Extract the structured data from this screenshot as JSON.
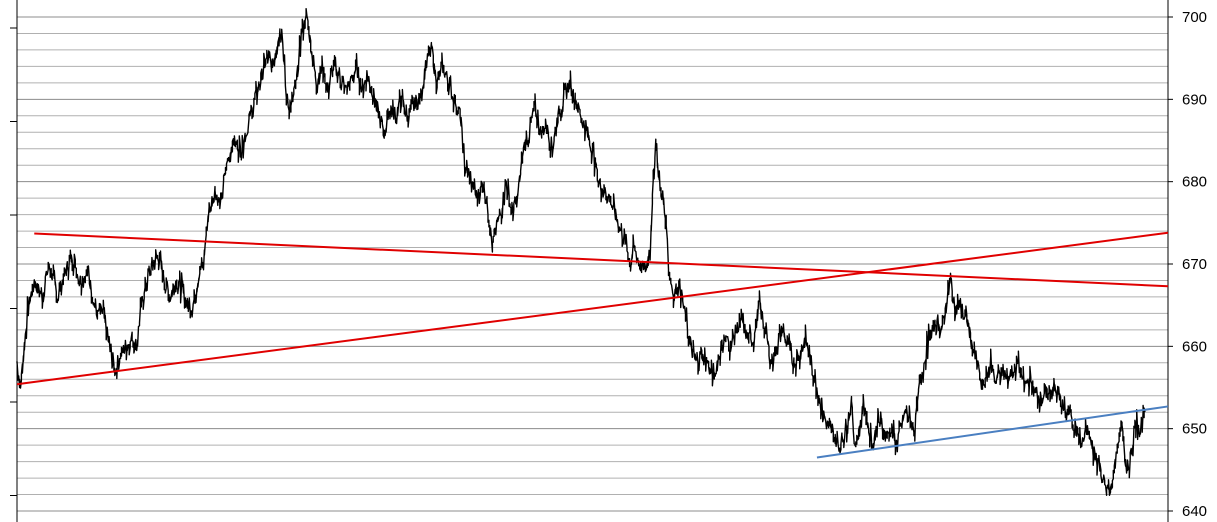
{
  "chart_data": {
    "type": "line",
    "title": "",
    "xlabel": "",
    "ylabel": "",
    "y_axis_position": "right",
    "ylim": [
      639,
      701
    ],
    "y_ticks": [
      640,
      650,
      660,
      670,
      680,
      690,
      700
    ],
    "minor_grid_step": 2,
    "grid": true,
    "legend": "none",
    "x_index_range": [
      0,
      1000
    ],
    "series": [
      {
        "color": "#000000",
        "points": [
          [
            0,
            658
          ],
          [
            3,
            655
          ],
          [
            9,
            664
          ],
          [
            15,
            668
          ],
          [
            22,
            666
          ],
          [
            28,
            670
          ],
          [
            35,
            666
          ],
          [
            42,
            669
          ],
          [
            48,
            671
          ],
          [
            55,
            668
          ],
          [
            62,
            669
          ],
          [
            69,
            664
          ],
          [
            75,
            664
          ],
          [
            80,
            660
          ],
          [
            85,
            657
          ],
          [
            90,
            659
          ],
          [
            95,
            660
          ],
          [
            100,
            661
          ],
          [
            104,
            660
          ],
          [
            108,
            665
          ],
          [
            113,
            668
          ],
          [
            118,
            670
          ],
          [
            123,
            671
          ],
          [
            128,
            668
          ],
          [
            133,
            666
          ],
          [
            138,
            668
          ],
          [
            143,
            667
          ],
          [
            148,
            665
          ],
          [
            153,
            665
          ],
          [
            158,
            669
          ],
          [
            162,
            670
          ],
          [
            166,
            676
          ],
          [
            172,
            679
          ],
          [
            177,
            677
          ],
          [
            182,
            682
          ],
          [
            188,
            685
          ],
          [
            194,
            684
          ],
          [
            199,
            686
          ],
          [
            205,
            689
          ],
          [
            211,
            692
          ],
          [
            217,
            695
          ],
          [
            222,
            694
          ],
          [
            226,
            697
          ],
          [
            230,
            699
          ],
          [
            234,
            690
          ],
          [
            238,
            689
          ],
          [
            243,
            692
          ],
          [
            247,
            698
          ],
          [
            252,
            700
          ],
          [
            256,
            696
          ],
          [
            260,
            692
          ],
          [
            265,
            694
          ],
          [
            270,
            691
          ],
          [
            275,
            694
          ],
          [
            280,
            693
          ],
          [
            285,
            691
          ],
          [
            290,
            692
          ],
          [
            295,
            694
          ],
          [
            300,
            691
          ],
          [
            304,
            693
          ],
          [
            309,
            691
          ],
          [
            314,
            688
          ],
          [
            319,
            686
          ],
          [
            324,
            689
          ],
          [
            329,
            688
          ],
          [
            334,
            690
          ],
          [
            339,
            688
          ],
          [
            344,
            689
          ],
          [
            350,
            690
          ],
          [
            355,
            694
          ],
          [
            360,
            696
          ],
          [
            365,
            692
          ],
          [
            370,
            694
          ],
          [
            375,
            692
          ],
          [
            380,
            690
          ],
          [
            385,
            688
          ],
          [
            389,
            682
          ],
          [
            394,
            680
          ],
          [
            400,
            678
          ],
          [
            405,
            680
          ],
          [
            410,
            676
          ],
          [
            413,
            672
          ],
          [
            416,
            674
          ],
          [
            420,
            676
          ],
          [
            425,
            680
          ],
          [
            430,
            676
          ],
          [
            435,
            678
          ],
          [
            440,
            684
          ],
          [
            445,
            686
          ],
          [
            450,
            689
          ],
          [
            455,
            686
          ],
          [
            460,
            687
          ],
          [
            465,
            684
          ],
          [
            470,
            688
          ],
          [
            475,
            690
          ],
          [
            480,
            692
          ],
          [
            485,
            690
          ],
          [
            490,
            688
          ],
          [
            495,
            686
          ],
          [
            500,
            684
          ],
          [
            505,
            680
          ],
          [
            510,
            679
          ],
          [
            515,
            678
          ],
          [
            520,
            676
          ],
          [
            525,
            674
          ],
          [
            530,
            672
          ],
          [
            533,
            670
          ],
          [
            536,
            672
          ],
          [
            541,
            670
          ],
          [
            546,
            669
          ],
          [
            550,
            672
          ],
          [
            552,
            678
          ],
          [
            555,
            685
          ],
          [
            558,
            680
          ],
          [
            561,
            678
          ],
          [
            564,
            675
          ],
          [
            566,
            670
          ],
          [
            568,
            668
          ],
          [
            571,
            666
          ],
          [
            575,
            668
          ],
          [
            580,
            664
          ],
          [
            585,
            660
          ],
          [
            590,
            658
          ],
          [
            595,
            659
          ],
          [
            600,
            658
          ],
          [
            605,
            656
          ],
          [
            610,
            659
          ],
          [
            615,
            661
          ],
          [
            620,
            660
          ],
          [
            625,
            662
          ],
          [
            630,
            663
          ],
          [
            635,
            661
          ],
          [
            640,
            661
          ],
          [
            645,
            665
          ],
          [
            650,
            662
          ],
          [
            655,
            658
          ],
          [
            660,
            660
          ],
          [
            665,
            662
          ],
          [
            670,
            660
          ],
          [
            675,
            658
          ],
          [
            680,
            659
          ],
          [
            685,
            661
          ],
          [
            690,
            658
          ],
          [
            695,
            655
          ],
          [
            700,
            652
          ],
          [
            705,
            650
          ],
          [
            710,
            649
          ],
          [
            715,
            648
          ],
          [
            720,
            650
          ],
          [
            725,
            653
          ],
          [
            728,
            648
          ],
          [
            732,
            650
          ],
          [
            736,
            653
          ],
          [
            740,
            650
          ],
          [
            744,
            648
          ],
          [
            748,
            651
          ],
          [
            752,
            650
          ],
          [
            756,
            649
          ],
          [
            760,
            650
          ],
          [
            764,
            648
          ],
          [
            768,
            650
          ],
          [
            772,
            652
          ],
          [
            776,
            651
          ],
          [
            780,
            650
          ],
          [
            784,
            655
          ],
          [
            788,
            658
          ],
          [
            792,
            661
          ],
          [
            796,
            662
          ],
          [
            800,
            663
          ],
          [
            804,
            662
          ],
          [
            808,
            666
          ],
          [
            811,
            668
          ],
          [
            814,
            665
          ],
          [
            818,
            665
          ],
          [
            822,
            664
          ],
          [
            826,
            663
          ],
          [
            830,
            660
          ],
          [
            834,
            658
          ],
          [
            838,
            655
          ],
          [
            842,
            656
          ],
          [
            846,
            658
          ],
          [
            850,
            656
          ],
          [
            855,
            657
          ],
          [
            860,
            656
          ],
          [
            865,
            657
          ],
          [
            870,
            658
          ],
          [
            875,
            655
          ],
          [
            880,
            656
          ],
          [
            885,
            654
          ],
          [
            890,
            654
          ],
          [
            895,
            654
          ],
          [
            900,
            655
          ],
          [
            905,
            654
          ],
          [
            910,
            652
          ],
          [
            915,
            652
          ],
          [
            920,
            650
          ],
          [
            925,
            648
          ],
          [
            930,
            650
          ],
          [
            935,
            647
          ],
          [
            940,
            646
          ],
          [
            945,
            643
          ],
          [
            950,
            642
          ],
          [
            955,
            647
          ],
          [
            960,
            651
          ],
          [
            964,
            644
          ],
          [
            968,
            647
          ],
          [
            972,
            651
          ],
          [
            976,
            650
          ],
          [
            980,
            652
          ]
        ]
      }
    ],
    "trendlines": [
      {
        "color": "#e00000",
        "x": [
          15,
          1000
        ],
        "y": [
          673.7,
          667.3
        ]
      },
      {
        "color": "#e00000",
        "x": [
          0,
          1000
        ],
        "y": [
          655.4,
          673.8
        ]
      },
      {
        "color": "#4a7fc1",
        "x": [
          695,
          1000
        ],
        "y": [
          646.5,
          652.7
        ]
      }
    ]
  }
}
